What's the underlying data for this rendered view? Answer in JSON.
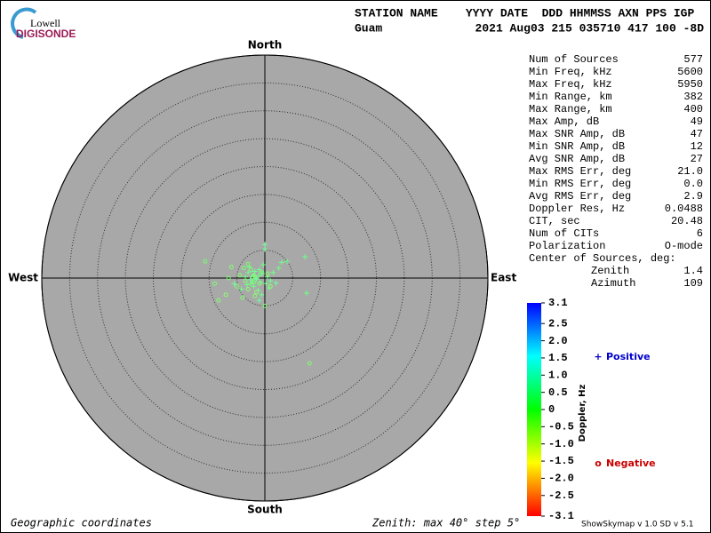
{
  "logo": {
    "top": "Lowell",
    "bottom": "DIGISONDE"
  },
  "header": {
    "labels": "STATION NAME    YYYY DATE  DDD HHMMSS AXN PPS IGP",
    "station": "Guam",
    "values": "2021 Aug03 215 035710 417 100 -8D"
  },
  "params": [
    [
      "Num of Sources",
      "577"
    ],
    [
      "Min Freq, kHz",
      "5600"
    ],
    [
      "Max Freq, kHz",
      "5950"
    ],
    [
      "Min Range, km",
      "382"
    ],
    [
      "Max Range, km",
      "400"
    ],
    [
      "Max Amp, dB",
      "49"
    ],
    [
      "Max SNR Amp, dB",
      "47"
    ],
    [
      "Min SNR Amp, dB",
      "12"
    ],
    [
      "Avg SNR Amp, dB",
      "27"
    ],
    [
      "Max RMS Err, deg",
      "21.0"
    ],
    [
      "Min RMS Err, deg",
      "0.0"
    ],
    [
      "Avg RMS Err, deg",
      "2.9"
    ],
    [
      "Doppler Res, Hz",
      "0.0488"
    ],
    [
      "CIT, sec",
      "20.48"
    ],
    [
      "Num of CITs",
      "6"
    ],
    [
      "Polarization",
      "O-mode"
    ]
  ],
  "center": {
    "label": "Center of Sources, deg:",
    "rows": [
      [
        "Zenith",
        "1.4"
      ],
      [
        "Azimuth",
        "109"
      ]
    ]
  },
  "footer": {
    "left": "Geographic coordinates",
    "zenith": "Zenith: max 40°  step 5°",
    "version": "ShowSkymap v 1.0  SD v 5.1"
  },
  "chart_data": {
    "type": "polar-scatter",
    "directions": {
      "north": "North",
      "south": "South",
      "east": "East",
      "west": "West"
    },
    "rlim": [
      0,
      40
    ],
    "rticks": [
      5,
      10,
      15,
      20,
      25,
      30,
      35,
      40
    ],
    "colorbar": {
      "label": "Doppler, Hz",
      "lim": [
        -3.1,
        3.1
      ],
      "ticks": [
        3.1,
        2.5,
        {
          "value": 2.0,
          "label": "2.0"
        },
        1.5,
        {
          "value": 1.0,
          "label": "1.0"
        },
        0.5,
        0,
        -0.5,
        {
          "value": -1.0,
          "label": "-1.0"
        },
        -1.5,
        {
          "value": -2.0,
          "label": "-2.0"
        },
        -2.5,
        -3.1
      ]
    },
    "series": [
      {
        "name": "Positive",
        "marker": "+",
        "color": "#0000cc",
        "x": [
          7.2,
          0,
          0,
          7.5,
          -1,
          3,
          -5.5,
          2.5,
          -2,
          -1.5,
          -3,
          -2.5,
          -0.5,
          0.5,
          -1,
          -2,
          -3.5,
          -1.2,
          0.2,
          -2.8,
          1,
          -0.8,
          -1.8,
          -2.2,
          1.5,
          4,
          -4.2,
          -0.3,
          -1.6,
          0.8,
          -2.6,
          -1.1,
          -3.2,
          2,
          -0.6
        ],
        "y": [
          3.8,
          6,
          5.2,
          -2.7,
          -4,
          2.8,
          -1,
          1.8,
          0.5,
          -0.2,
          1,
          -1,
          0.8,
          0.2,
          1.5,
          -1.5,
          0.2,
          -2.2,
          -1,
          2,
          -0.5,
          -0.8,
          1.2,
          -0.6,
          1,
          3,
          -2,
          2.4,
          0,
          -1.8,
          -0.3,
          0.4,
          -1.2,
          -0.9,
          -3
        ],
        "doppler": [
          0.3,
          0.4,
          0.3,
          0.2,
          0.5,
          0.3,
          0.4,
          0.2,
          0.3,
          0.4,
          0.3,
          0.2,
          0.5,
          0.3,
          0.4,
          0.2,
          0.3,
          0.4,
          0.3,
          0.2,
          0.4,
          0.3,
          0.5,
          0.2,
          0.3,
          0.4,
          0.3,
          0.2,
          0.4,
          0.3,
          0.5,
          0.2,
          0.3,
          0.4,
          0.3
        ]
      },
      {
        "name": "Negative",
        "marker": "o",
        "color": "#cc0000",
        "x": [
          8,
          -10.7,
          -8.3,
          -7,
          -9,
          -4,
          0,
          -6,
          -3,
          -2,
          -1,
          -2.5,
          -3.5,
          -1.5,
          -0.5,
          -4.5,
          -2,
          -5,
          1,
          -3,
          -1.8,
          -6.5,
          -2.2,
          0.5,
          -3.8
        ],
        "y": [
          -15.3,
          3,
          -4,
          -3,
          -1,
          -3.5,
          -5,
          2,
          -2,
          0.5,
          -1,
          1.5,
          -0.5,
          -2.5,
          1,
          0.5,
          -0.8,
          -1.5,
          -1.5,
          2.5,
          -3.2,
          0,
          0.2,
          0.8,
          1.8
        ],
        "doppler": [
          -0.2,
          -0.1,
          -0.2,
          -0.3,
          -0.1,
          -0.2,
          -0.1,
          -0.2,
          -0.3,
          -0.1,
          -0.2,
          -0.1,
          -0.2,
          -0.3,
          -0.1,
          -0.2,
          -0.1,
          -0.2,
          -0.3,
          -0.1,
          -0.2,
          -0.1,
          -0.2,
          -0.3,
          -0.1
        ]
      }
    ]
  }
}
